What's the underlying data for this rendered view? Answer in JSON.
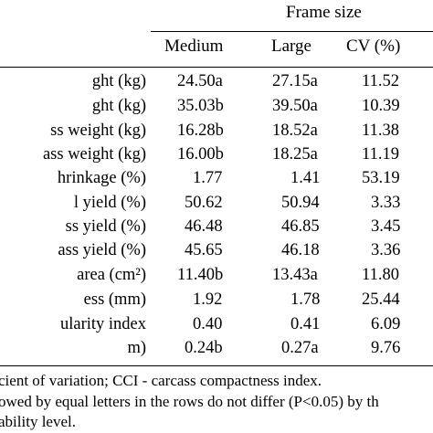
{
  "table": {
    "group_header": "Frame size",
    "columns": [
      "Medium",
      "Large",
      "CV (%)"
    ],
    "rows": [
      {
        "label": "ght (kg)",
        "medium": "24.50a",
        "large": "27.15a",
        "cv": "11.52"
      },
      {
        "label": "ght (kg)",
        "medium": "35.03b",
        "large": "39.50a",
        "cv": "10.39"
      },
      {
        "label": "ss weight (kg)",
        "medium": "16.28b",
        "large": "18.52a",
        "cv": "11.38"
      },
      {
        "label": "ass weight (kg)",
        "medium": "16.00b",
        "large": "18.25a",
        "cv": "11.19"
      },
      {
        "label": "hrinkage (%)",
        "medium": "1.77",
        "large": "1.41",
        "cv": "53.19"
      },
      {
        "label": "l yield (%)",
        "medium": "50.62",
        "large": "50.94",
        "cv": "3.33"
      },
      {
        "label": "ss yield (%)",
        "medium": "46.48",
        "large": "46.85",
        "cv": "3.45"
      },
      {
        "label": "ass yield (%)",
        "medium": "45.65",
        "large": "46.18",
        "cv": "3.36"
      },
      {
        "label": "area  (cm²)",
        "medium": "11.40b",
        "large": "13.43a",
        "cv": "11.80"
      },
      {
        "label": "ess (mm)",
        "medium": "1.92",
        "large": "1.78",
        "cv": "25.44"
      },
      {
        "label": "ularity index",
        "medium": "0.40",
        "large": "0.41",
        "cv": "6.09"
      },
      {
        "label": "m)",
        "medium": "0.24b",
        "large": "0.27a",
        "cv": "9.76"
      }
    ]
  },
  "footnotes": [
    "cient of variation; CCI - carcass compactness index.",
    "owed by equal letters in the rows do not differ (P<0.05) by th",
    "ability level."
  ]
}
